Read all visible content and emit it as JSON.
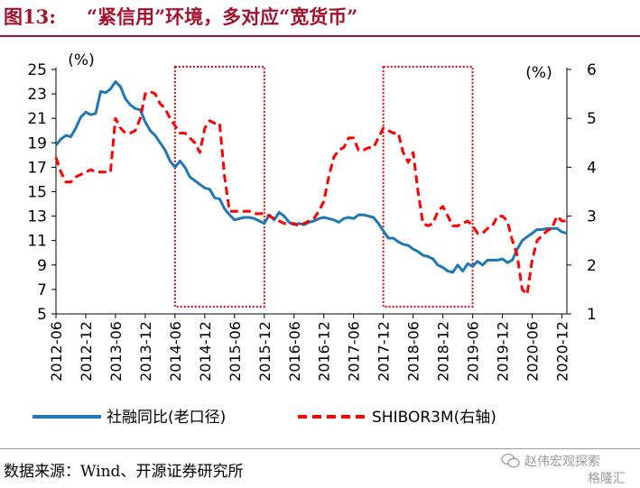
{
  "figure": {
    "number": "图13:",
    "title": "“紧信用”环境，多对应“宽货币”"
  },
  "source": "数据来源：Wind、开源证券研究所",
  "watermark": {
    "line1": "赵伟宏观探索",
    "line2": "格隆汇",
    "icon": "wechat-icon"
  },
  "colors": {
    "title": "#a5122b",
    "series_blue": "#1f77b4",
    "series_red": "#ff0000",
    "box": "#ff0000"
  },
  "chart_data": {
    "type": "line",
    "left_unit": "(%)",
    "right_unit": "(%)",
    "left_axis": {
      "ylim": [
        5,
        25
      ],
      "ticks": [
        "5",
        "7",
        "9",
        "11",
        "13",
        "15",
        "17",
        "19",
        "21",
        "23",
        "25"
      ]
    },
    "right_axis": {
      "ylim": [
        1,
        6
      ],
      "ticks": [
        "1",
        "2",
        "3",
        "4",
        "5",
        "6"
      ]
    },
    "x_ticks": [
      "2012-06",
      "2012-12",
      "2013-06",
      "2013-12",
      "2014-06",
      "2014-12",
      "2015-06",
      "2015-12",
      "2016-06",
      "2016-12",
      "2017-06",
      "2017-12",
      "2018-06",
      "2018-12",
      "2019-06",
      "2019-12",
      "2020-06",
      "2020-12"
    ],
    "x_start": "2012-06",
    "x_end": "2021-01",
    "grid": false,
    "legend_position": "bottom",
    "highlight_boxes": [
      {
        "from": "2014-06",
        "to": "2015-12"
      },
      {
        "from": "2017-12",
        "to": "2019-06"
      }
    ],
    "series": [
      {
        "name": "社融同比(老口径)",
        "axis": "left",
        "style": "solid",
        "color": "#1f77b4",
        "points": [
          [
            "2012-06",
            18.8
          ],
          [
            "2012-07",
            19.3
          ],
          [
            "2012-08",
            19.6
          ],
          [
            "2012-09",
            19.5
          ],
          [
            "2012-10",
            20.2
          ],
          [
            "2012-11",
            21.1
          ],
          [
            "2012-12",
            21.5
          ],
          [
            "2013-01",
            21.3
          ],
          [
            "2013-02",
            21.4
          ],
          [
            "2013-03",
            23.2
          ],
          [
            "2013-04",
            23.1
          ],
          [
            "2013-05",
            23.4
          ],
          [
            "2013-06",
            24.0
          ],
          [
            "2013-07",
            23.6
          ],
          [
            "2013-08",
            22.6
          ],
          [
            "2013-09",
            22.1
          ],
          [
            "2013-10",
            21.8
          ],
          [
            "2013-11",
            21.7
          ],
          [
            "2013-12",
            20.7
          ],
          [
            "2014-01",
            20.0
          ],
          [
            "2014-02",
            19.6
          ],
          [
            "2014-03",
            19.0
          ],
          [
            "2014-04",
            18.4
          ],
          [
            "2014-05",
            17.5
          ],
          [
            "2014-06",
            17.0
          ],
          [
            "2014-07",
            17.5
          ],
          [
            "2014-08",
            17.0
          ],
          [
            "2014-09",
            16.2
          ],
          [
            "2014-10",
            15.9
          ],
          [
            "2014-11",
            15.6
          ],
          [
            "2014-12",
            15.3
          ],
          [
            "2015-01",
            15.2
          ],
          [
            "2015-02",
            14.5
          ],
          [
            "2015-03",
            14.4
          ],
          [
            "2015-04",
            13.6
          ],
          [
            "2015-05",
            13.1
          ],
          [
            "2015-06",
            12.7
          ],
          [
            "2015-07",
            12.8
          ],
          [
            "2015-08",
            12.9
          ],
          [
            "2015-09",
            12.9
          ],
          [
            "2015-10",
            12.8
          ],
          [
            "2015-11",
            12.6
          ],
          [
            "2015-12",
            12.4
          ],
          [
            "2016-01",
            13.1
          ],
          [
            "2016-02",
            12.7
          ],
          [
            "2016-03",
            13.3
          ],
          [
            "2016-04",
            13.0
          ],
          [
            "2016-05",
            12.5
          ],
          [
            "2016-06",
            12.3
          ],
          [
            "2016-07",
            12.4
          ],
          [
            "2016-08",
            12.3
          ],
          [
            "2016-09",
            12.5
          ],
          [
            "2016-10",
            12.6
          ],
          [
            "2016-11",
            12.8
          ],
          [
            "2016-12",
            12.9
          ],
          [
            "2017-01",
            12.8
          ],
          [
            "2017-02",
            12.7
          ],
          [
            "2017-03",
            12.5
          ],
          [
            "2017-04",
            12.8
          ],
          [
            "2017-05",
            12.9
          ],
          [
            "2017-06",
            12.8
          ],
          [
            "2017-07",
            13.1
          ],
          [
            "2017-08",
            13.1
          ],
          [
            "2017-09",
            13.0
          ],
          [
            "2017-10",
            12.9
          ],
          [
            "2017-11",
            12.4
          ],
          [
            "2017-12",
            11.8
          ],
          [
            "2018-01",
            11.2
          ],
          [
            "2018-02",
            11.2
          ],
          [
            "2018-03",
            10.9
          ],
          [
            "2018-04",
            10.7
          ],
          [
            "2018-05",
            10.6
          ],
          [
            "2018-06",
            10.3
          ],
          [
            "2018-07",
            10.1
          ],
          [
            "2018-08",
            9.8
          ],
          [
            "2018-09",
            9.7
          ],
          [
            "2018-10",
            9.5
          ],
          [
            "2018-11",
            9.0
          ],
          [
            "2018-12",
            8.8
          ],
          [
            "2019-01",
            8.5
          ],
          [
            "2019-02",
            8.4
          ],
          [
            "2019-03",
            9.0
          ],
          [
            "2019-04",
            8.5
          ],
          [
            "2019-05",
            9.1
          ],
          [
            "2019-06",
            8.9
          ],
          [
            "2019-07",
            9.3
          ],
          [
            "2019-08",
            9.0
          ],
          [
            "2019-09",
            9.4
          ],
          [
            "2019-10",
            9.4
          ],
          [
            "2019-11",
            9.4
          ],
          [
            "2019-12",
            9.5
          ],
          [
            "2020-01",
            9.2
          ],
          [
            "2020-02",
            9.4
          ],
          [
            "2020-03",
            10.3
          ],
          [
            "2020-04",
            11.0
          ],
          [
            "2020-05",
            11.3
          ],
          [
            "2020-06",
            11.6
          ],
          [
            "2020-07",
            11.9
          ],
          [
            "2020-08",
            11.9
          ],
          [
            "2020-09",
            12.0
          ],
          [
            "2020-10",
            12.0
          ],
          [
            "2020-11",
            12.0
          ],
          [
            "2020-12",
            11.7
          ],
          [
            "2021-01",
            11.6
          ]
        ]
      },
      {
        "name": "SHIBOR3M(右轴)",
        "axis": "right",
        "style": "dashed",
        "color": "#ff0000",
        "points": [
          [
            "2012-06",
            4.2
          ],
          [
            "2012-07",
            3.9
          ],
          [
            "2012-08",
            3.7
          ],
          [
            "2012-09",
            3.7
          ],
          [
            "2012-10",
            3.8
          ],
          [
            "2012-11",
            3.85
          ],
          [
            "2012-12",
            3.9
          ],
          [
            "2013-01",
            3.95
          ],
          [
            "2013-02",
            3.9
          ],
          [
            "2013-03",
            3.9
          ],
          [
            "2013-04",
            3.9
          ],
          [
            "2013-05",
            3.9
          ],
          [
            "2013-06",
            5.0
          ],
          [
            "2013-07",
            4.8
          ],
          [
            "2013-08",
            4.7
          ],
          [
            "2013-09",
            4.7
          ],
          [
            "2013-10",
            4.75
          ],
          [
            "2013-11",
            5.0
          ],
          [
            "2013-12",
            5.5
          ],
          [
            "2014-01",
            5.55
          ],
          [
            "2014-02",
            5.5
          ],
          [
            "2014-03",
            5.3
          ],
          [
            "2014-04",
            5.2
          ],
          [
            "2014-05",
            5.0
          ],
          [
            "2014-06",
            4.85
          ],
          [
            "2014-07",
            4.7
          ],
          [
            "2014-08",
            4.7
          ],
          [
            "2014-09",
            4.6
          ],
          [
            "2014-10",
            4.5
          ],
          [
            "2014-11",
            4.3
          ],
          [
            "2014-12",
            4.8
          ],
          [
            "2015-01",
            4.95
          ],
          [
            "2015-02",
            4.9
          ],
          [
            "2015-03",
            4.9
          ],
          [
            "2015-04",
            3.8
          ],
          [
            "2015-05",
            3.1
          ],
          [
            "2015-06",
            3.1
          ],
          [
            "2015-07",
            3.1
          ],
          [
            "2015-08",
            3.1
          ],
          [
            "2015-09",
            3.1
          ],
          [
            "2015-10",
            3.05
          ],
          [
            "2015-11",
            3.05
          ],
          [
            "2015-12",
            3.05
          ],
          [
            "2016-01",
            3.0
          ],
          [
            "2016-02",
            2.95
          ],
          [
            "2016-03",
            2.9
          ],
          [
            "2016-04",
            2.85
          ],
          [
            "2016-05",
            2.85
          ],
          [
            "2016-06",
            2.85
          ],
          [
            "2016-07",
            2.8
          ],
          [
            "2016-08",
            2.85
          ],
          [
            "2016-09",
            2.9
          ],
          [
            "2016-10",
            2.95
          ],
          [
            "2016-11",
            3.1
          ],
          [
            "2016-12",
            3.3
          ],
          [
            "2017-01",
            3.8
          ],
          [
            "2017-02",
            4.2
          ],
          [
            "2017-03",
            4.35
          ],
          [
            "2017-04",
            4.4
          ],
          [
            "2017-05",
            4.6
          ],
          [
            "2017-06",
            4.6
          ],
          [
            "2017-07",
            4.35
          ],
          [
            "2017-08",
            4.35
          ],
          [
            "2017-09",
            4.4
          ],
          [
            "2017-10",
            4.4
          ],
          [
            "2017-11",
            4.6
          ],
          [
            "2017-12",
            4.8
          ],
          [
            "2018-01",
            4.75
          ],
          [
            "2018-02",
            4.7
          ],
          [
            "2018-03",
            4.7
          ],
          [
            "2018-04",
            4.3
          ],
          [
            "2018-05",
            4.1
          ],
          [
            "2018-06",
            4.3
          ],
          [
            "2018-07",
            3.5
          ],
          [
            "2018-08",
            2.85
          ],
          [
            "2018-09",
            2.8
          ],
          [
            "2018-10",
            2.85
          ],
          [
            "2018-11",
            3.1
          ],
          [
            "2018-12",
            3.2
          ],
          [
            "2019-01",
            3.0
          ],
          [
            "2019-02",
            2.8
          ],
          [
            "2019-03",
            2.8
          ],
          [
            "2019-04",
            2.85
          ],
          [
            "2019-05",
            2.9
          ],
          [
            "2019-06",
            2.8
          ],
          [
            "2019-07",
            2.65
          ],
          [
            "2019-08",
            2.65
          ],
          [
            "2019-09",
            2.75
          ],
          [
            "2019-10",
            2.8
          ],
          [
            "2019-11",
            3.0
          ],
          [
            "2019-12",
            3.0
          ],
          [
            "2020-01",
            2.9
          ],
          [
            "2020-02",
            2.5
          ],
          [
            "2020-03",
            2.2
          ],
          [
            "2020-04",
            1.5
          ],
          [
            "2020-05",
            1.4
          ],
          [
            "2020-06",
            2.1
          ],
          [
            "2020-07",
            2.5
          ],
          [
            "2020-08",
            2.6
          ],
          [
            "2020-09",
            2.7
          ],
          [
            "2020-10",
            2.75
          ],
          [
            "2020-11",
            3.0
          ],
          [
            "2020-12",
            2.9
          ],
          [
            "2021-01",
            2.9
          ]
        ]
      }
    ]
  }
}
